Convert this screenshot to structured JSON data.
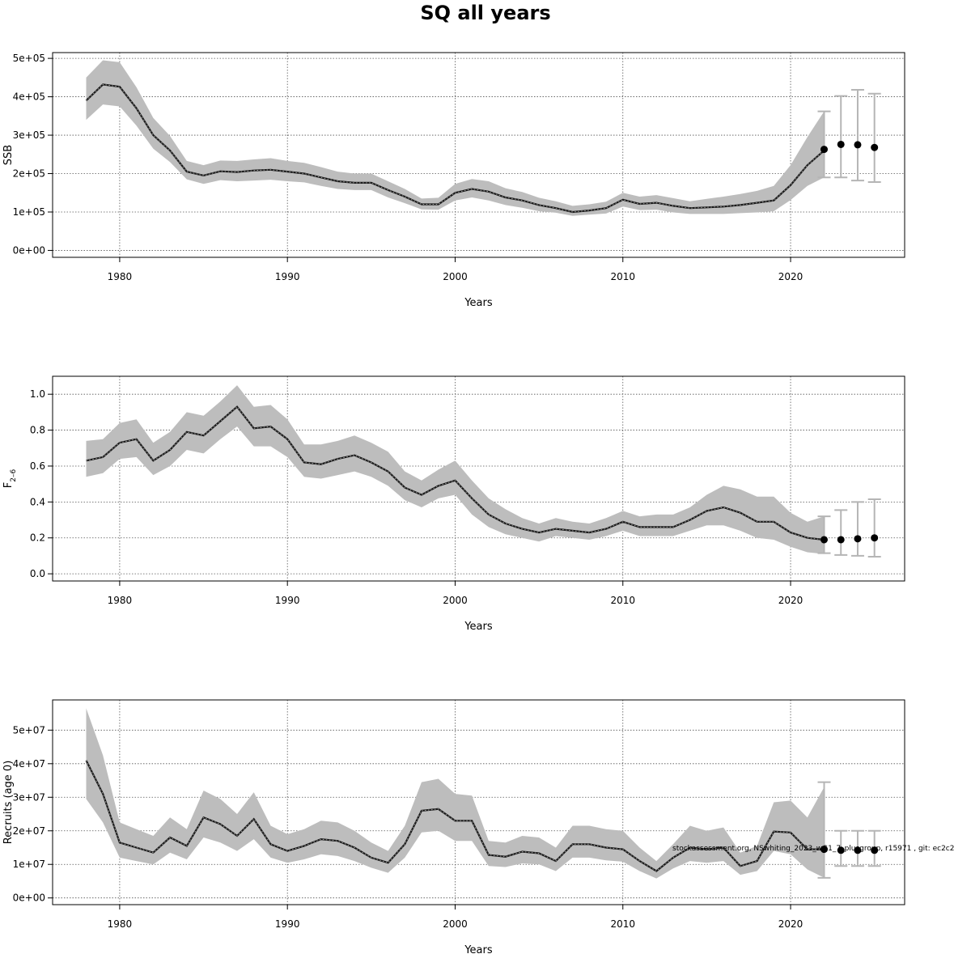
{
  "title": "SQ all years",
  "footnote": "stockassessment.org, NSwhiting_2023_wG1_7_plusgroup, r15971 , git: ec2c2",
  "chart_data": [
    {
      "type": "line",
      "ylabel": "SSB",
      "xlabel": "Years",
      "xlim": [
        1976,
        2026.8
      ],
      "ylim": [
        -18000,
        515000
      ],
      "xticks": [
        1980,
        1990,
        2000,
        2010,
        2020
      ],
      "xtick_labels": [
        "1980",
        "1990",
        "2000",
        "2010",
        "2020"
      ],
      "yticks": [
        0,
        100000,
        200000,
        300000,
        400000,
        500000
      ],
      "ytick_labels": [
        "0e+00",
        "1e+05",
        "2e+05",
        "3e+05",
        "4e+05",
        "5e+05"
      ],
      "grid": true,
      "years": [
        1978,
        1979,
        1980,
        1981,
        1982,
        1983,
        1984,
        1985,
        1986,
        1987,
        1988,
        1989,
        1990,
        1991,
        1992,
        1993,
        1994,
        1995,
        1996,
        1997,
        1998,
        1999,
        2000,
        2001,
        2002,
        2003,
        2004,
        2005,
        2006,
        2007,
        2008,
        2009,
        2010,
        2011,
        2012,
        2013,
        2014,
        2015,
        2016,
        2017,
        2018,
        2019,
        2020,
        2021,
        2022
      ],
      "estimate": [
        390000,
        432000,
        426000,
        370000,
        300000,
        260000,
        205000,
        195000,
        206000,
        204000,
        208000,
        210000,
        205000,
        200000,
        190000,
        180000,
        176000,
        176000,
        157000,
        140000,
        120000,
        120000,
        150000,
        160000,
        153000,
        138000,
        130000,
        118000,
        110000,
        100000,
        104000,
        110000,
        132000,
        121000,
        124000,
        116000,
        110000,
        112000,
        114000,
        118000,
        124000,
        130000,
        170000,
        222000,
        260000
      ],
      "upper": [
        450000,
        495000,
        490000,
        425000,
        345000,
        298000,
        233000,
        222000,
        234000,
        233000,
        237000,
        240000,
        233000,
        228000,
        217000,
        205000,
        200000,
        200000,
        180000,
        160000,
        135000,
        137000,
        173000,
        186000,
        180000,
        162000,
        152000,
        137000,
        128000,
        116000,
        120000,
        127000,
        150000,
        140000,
        144000,
        136000,
        128000,
        134000,
        140000,
        147000,
        155000,
        168000,
        222000,
        295000,
        362000
      ],
      "lower": [
        340000,
        380000,
        375000,
        325000,
        265000,
        230000,
        185000,
        173000,
        183000,
        180000,
        182000,
        184000,
        180000,
        177000,
        168000,
        160000,
        157000,
        157000,
        138000,
        123000,
        107000,
        106000,
        130000,
        138000,
        130000,
        118000,
        111000,
        102000,
        98000,
        90000,
        93000,
        96000,
        114000,
        105000,
        106000,
        99000,
        95000,
        95000,
        95000,
        97000,
        99000,
        102000,
        131000,
        168000,
        190000
      ],
      "forecast": {
        "years": [
          2022,
          2023,
          2024,
          2025
        ],
        "median": [
          263000,
          276000,
          275000,
          268000
        ],
        "upper": [
          362000,
          402000,
          418000,
          408000
        ],
        "lower": [
          190000,
          190000,
          182000,
          178000
        ]
      }
    },
    {
      "type": "line",
      "ylabel": "F",
      "ylabel_sub": "2–6",
      "xlabel": "Years",
      "xlim": [
        1976,
        2026.8
      ],
      "ylim": [
        -0.04,
        1.1
      ],
      "xticks": [
        1980,
        1990,
        2000,
        2010,
        2020
      ],
      "xtick_labels": [
        "1980",
        "1990",
        "2000",
        "2010",
        "2020"
      ],
      "yticks": [
        0,
        0.2,
        0.4,
        0.6,
        0.8,
        1.0
      ],
      "ytick_labels": [
        "0.0",
        "0.2",
        "0.4",
        "0.6",
        "0.8",
        "1.0"
      ],
      "grid": true,
      "years": [
        1978,
        1979,
        1980,
        1981,
        1982,
        1983,
        1984,
        1985,
        1986,
        1987,
        1988,
        1989,
        1990,
        1991,
        1992,
        1993,
        1994,
        1995,
        1996,
        1997,
        1998,
        1999,
        2000,
        2001,
        2002,
        2003,
        2004,
        2005,
        2006,
        2007,
        2008,
        2009,
        2010,
        2011,
        2012,
        2013,
        2014,
        2015,
        2016,
        2017,
        2018,
        2019,
        2020,
        2021,
        2022
      ],
      "estimate": [
        0.63,
        0.65,
        0.73,
        0.75,
        0.63,
        0.69,
        0.79,
        0.77,
        0.85,
        0.93,
        0.81,
        0.82,
        0.75,
        0.62,
        0.61,
        0.64,
        0.66,
        0.62,
        0.57,
        0.48,
        0.44,
        0.49,
        0.52,
        0.42,
        0.33,
        0.28,
        0.25,
        0.23,
        0.25,
        0.24,
        0.23,
        0.25,
        0.29,
        0.26,
        0.26,
        0.26,
        0.3,
        0.35,
        0.37,
        0.34,
        0.29,
        0.29,
        0.23,
        0.2,
        0.19
      ],
      "upper": [
        0.74,
        0.75,
        0.84,
        0.86,
        0.73,
        0.79,
        0.9,
        0.88,
        0.96,
        1.05,
        0.93,
        0.94,
        0.86,
        0.72,
        0.72,
        0.74,
        0.77,
        0.73,
        0.68,
        0.57,
        0.52,
        0.58,
        0.63,
        0.52,
        0.42,
        0.36,
        0.31,
        0.28,
        0.31,
        0.29,
        0.28,
        0.31,
        0.35,
        0.32,
        0.33,
        0.33,
        0.37,
        0.44,
        0.49,
        0.47,
        0.43,
        0.43,
        0.34,
        0.29,
        0.32
      ],
      "lower": [
        0.54,
        0.56,
        0.64,
        0.65,
        0.55,
        0.6,
        0.69,
        0.67,
        0.75,
        0.82,
        0.71,
        0.71,
        0.65,
        0.54,
        0.53,
        0.55,
        0.57,
        0.54,
        0.49,
        0.41,
        0.37,
        0.42,
        0.44,
        0.33,
        0.26,
        0.22,
        0.2,
        0.18,
        0.21,
        0.2,
        0.19,
        0.21,
        0.24,
        0.21,
        0.21,
        0.21,
        0.24,
        0.27,
        0.27,
        0.24,
        0.2,
        0.19,
        0.15,
        0.12,
        0.11
      ],
      "forecast": {
        "years": [
          2022,
          2023,
          2024,
          2025
        ],
        "median": [
          0.19,
          0.19,
          0.195,
          0.2
        ],
        "upper": [
          0.32,
          0.355,
          0.4,
          0.415
        ],
        "lower": [
          0.115,
          0.105,
          0.1,
          0.095
        ]
      }
    },
    {
      "type": "line",
      "ylabel": "Recruits (age 0)",
      "xlabel": "Years",
      "xlim": [
        1976,
        2026.8
      ],
      "ylim": [
        -2000000,
        59000000
      ],
      "xticks": [
        1980,
        1990,
        2000,
        2010,
        2020
      ],
      "xtick_labels": [
        "1980",
        "1990",
        "2000",
        "2010",
        "2020"
      ],
      "yticks": [
        0,
        10000000,
        20000000,
        30000000,
        40000000,
        50000000
      ],
      "ytick_labels": [
        "0e+00",
        "1e+07",
        "2e+07",
        "3e+07",
        "4e+07",
        "5e+07"
      ],
      "grid": true,
      "years": [
        1978,
        1979,
        1980,
        1981,
        1982,
        1983,
        1984,
        1985,
        1986,
        1987,
        1988,
        1989,
        1990,
        1991,
        1992,
        1993,
        1994,
        1995,
        1996,
        1997,
        1998,
        1999,
        2000,
        2001,
        2002,
        2003,
        2004,
        2005,
        2006,
        2007,
        2008,
        2009,
        2010,
        2011,
        2012,
        2013,
        2014,
        2015,
        2016,
        2017,
        2018,
        2019,
        2020,
        2021,
        2022
      ],
      "estimate": [
        41000000,
        31000000,
        16500000,
        15000000,
        13500000,
        18000000,
        15500000,
        24000000,
        22000000,
        18500000,
        23500000,
        16000000,
        14000000,
        15500000,
        17500000,
        17000000,
        15000000,
        12000000,
        10500000,
        16000000,
        26000000,
        26500000,
        23000000,
        23000000,
        12800000,
        12300000,
        13800000,
        13300000,
        11000000,
        16000000,
        16000000,
        15000000,
        14500000,
        11000000,
        8000000,
        12000000,
        15000000,
        14500000,
        15000000,
        9500000,
        11000000,
        19800000,
        19500000,
        14500000,
        14500000
      ],
      "upper": [
        56500000,
        42500000,
        22500000,
        20500000,
        18500000,
        24000000,
        20500000,
        32000000,
        29500000,
        25000000,
        31500000,
        21500000,
        19000000,
        20500000,
        23000000,
        22500000,
        20000000,
        16500000,
        14000000,
        21500000,
        34500000,
        35500000,
        31000000,
        30500000,
        17000000,
        16500000,
        18500000,
        18000000,
        15000000,
        21500000,
        21500000,
        20500000,
        20000000,
        15000000,
        11000000,
        16000000,
        21500000,
        20000000,
        21000000,
        13500000,
        15500000,
        28500000,
        29000000,
        24000000,
        33000000
      ],
      "lower": [
        29500000,
        22500000,
        12000000,
        11000000,
        10000000,
        13500000,
        11500000,
        18000000,
        16500000,
        14000000,
        17500000,
        12000000,
        10500000,
        11500000,
        13000000,
        12500000,
        11000000,
        9000000,
        7500000,
        12000000,
        19500000,
        20000000,
        17000000,
        17000000,
        9500000,
        9200000,
        10300000,
        10000000,
        8000000,
        12000000,
        12000000,
        11200000,
        10800000,
        8000000,
        5800000,
        8800000,
        11000000,
        10500000,
        11000000,
        6900000,
        8000000,
        14000000,
        13000000,
        8500000,
        6000000
      ],
      "forecast": {
        "years": [
          2022,
          2023,
          2024,
          2025
        ],
        "median": [
          14500000,
          14200000,
          14200000,
          14200000
        ],
        "upper": [
          34500000,
          20000000,
          20000000,
          20000000
        ],
        "lower": [
          6000000,
          9500000,
          9500000,
          9500000
        ]
      }
    }
  ]
}
